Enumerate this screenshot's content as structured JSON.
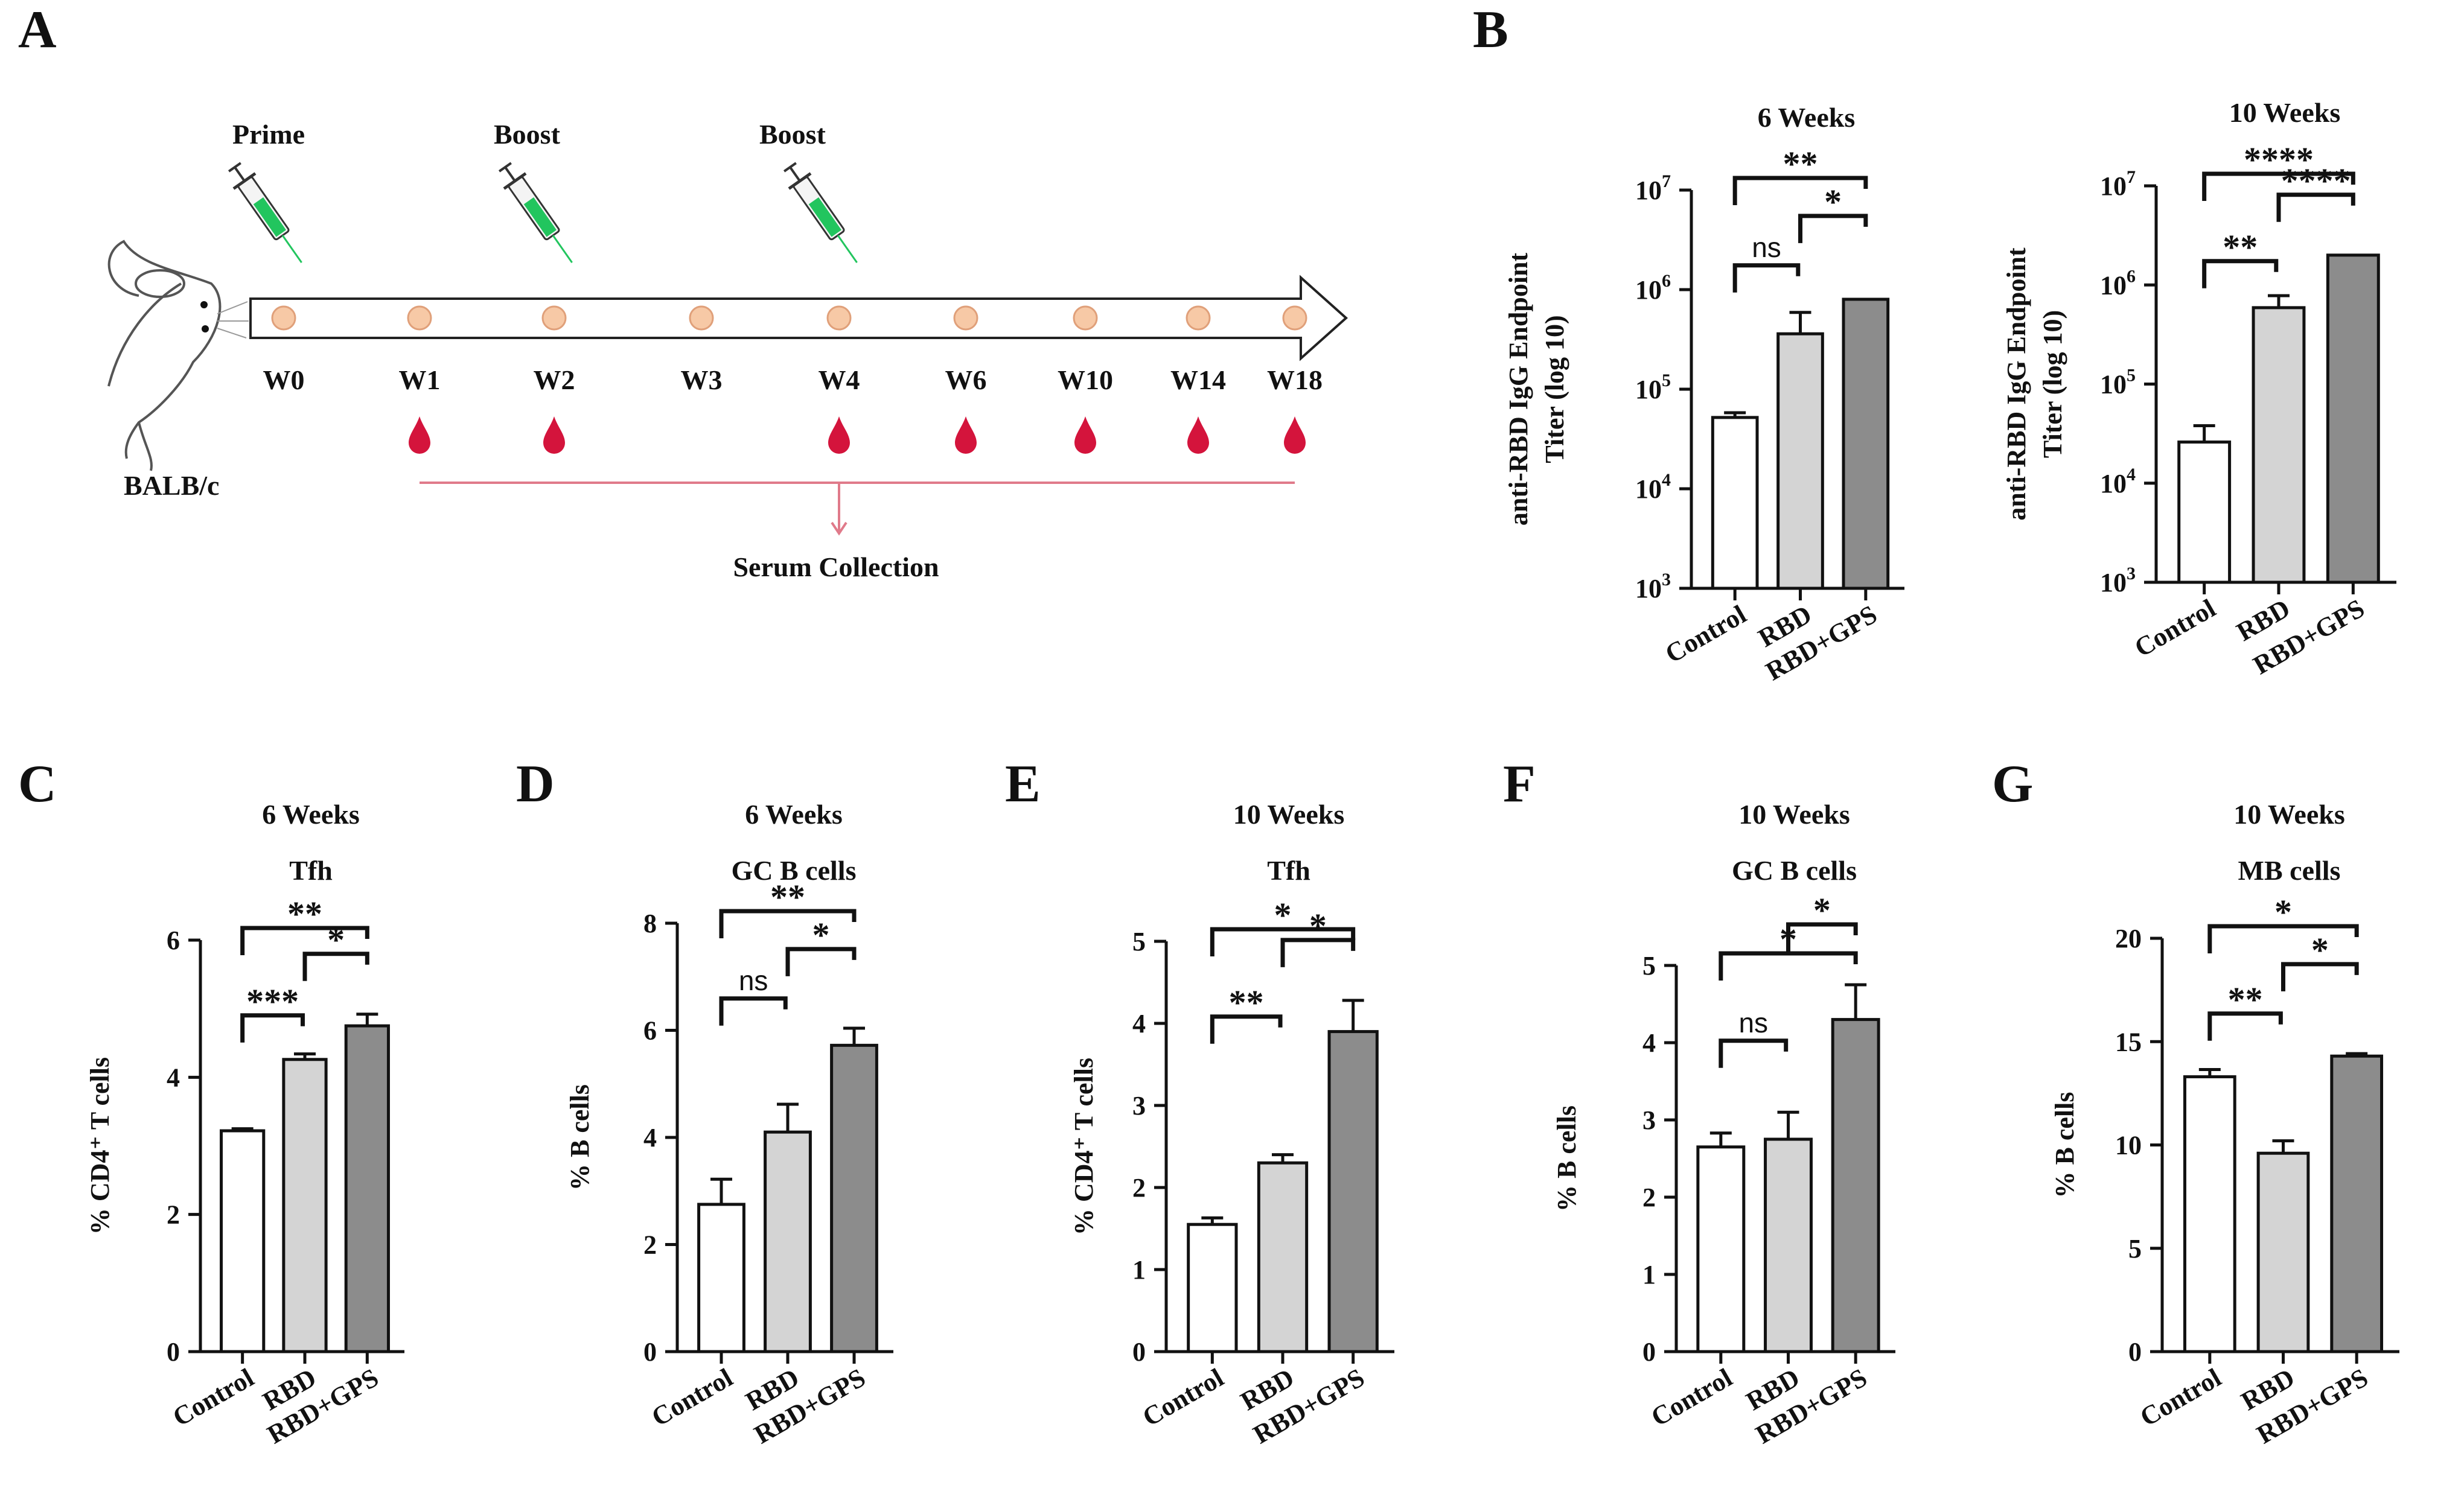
{
  "colors": {
    "ink": "#111111",
    "bar_control": "#ffffff",
    "bar_rbd": "#d4d4d4",
    "bar_rbd_gps": "#8c8c8c",
    "serum_line": "#e07a8a",
    "dot_fill": "#f7c9a6",
    "dot_stroke": "#e0a07a",
    "blood": "#d4143c",
    "syringe_liquid": "#22c55e"
  },
  "panels": {
    "A": "A",
    "B": "B",
    "C": "C",
    "D": "D",
    "E": "E",
    "F": "F",
    "G": "G"
  },
  "schematic": {
    "labels": {
      "prime": "Prime",
      "boost1": "Boost",
      "boost2": "Boost",
      "strain": "BALB/c",
      "serum": "Serum Collection"
    },
    "weeks": [
      "W0",
      "W1",
      "W2",
      "W3",
      "W4",
      "W6",
      "W10",
      "W14",
      "W18"
    ],
    "injection_weeks": [
      "W0",
      "W2",
      "W4"
    ],
    "bleed_weeks": [
      "W1",
      "W2",
      "W4",
      "W6",
      "W10",
      "W14",
      "W18"
    ],
    "icons": [
      "mouse-icon",
      "syringe-icon",
      "blood-drop-icon",
      "timeline-arrow-icon"
    ]
  },
  "chart_data": [
    {
      "panel": "B",
      "type": "bar",
      "scale": "log",
      "title": "6 Weeks",
      "subtitle": "",
      "ylabel_line1": "anti-RBD IgG Endpoint",
      "ylabel_line2": "Titer (log 10)",
      "categories": [
        "Control",
        "RBD",
        "RBD+GPS"
      ],
      "values": [
        52000,
        360000,
        800000
      ],
      "errors": [
        6000,
        230000,
        0
      ],
      "ylim": [
        1000,
        10000000
      ],
      "yticks": [
        1000,
        10000,
        100000,
        1000000,
        10000000
      ],
      "ytick_labels": [
        {
          "base": "10",
          "exp": "3"
        },
        {
          "base": "10",
          "exp": "4"
        },
        {
          "base": "10",
          "exp": "5"
        },
        {
          "base": "10",
          "exp": "6"
        },
        {
          "base": "10",
          "exp": "7"
        }
      ],
      "comparisons": [
        {
          "from": 0,
          "to": 1,
          "label": "ns",
          "level": 0
        },
        {
          "from": 1,
          "to": 2,
          "label": "*",
          "level": 1
        },
        {
          "from": 0,
          "to": 2,
          "label": "**",
          "level": 2
        }
      ]
    },
    {
      "panel": "B2",
      "type": "bar",
      "scale": "log",
      "title": "10 Weeks",
      "subtitle": "",
      "ylabel_line1": "anti-RBD IgG Endpoint",
      "ylabel_line2": "Titer (log 10)",
      "categories": [
        "Control",
        "RBD",
        "RBD+GPS"
      ],
      "values": [
        26000,
        590000,
        2000000
      ],
      "errors": [
        12000,
        190000,
        0
      ],
      "ylim": [
        1000,
        10000000
      ],
      "yticks": [
        1000,
        10000,
        100000,
        1000000,
        10000000
      ],
      "ytick_labels": [
        {
          "base": "10",
          "exp": "3"
        },
        {
          "base": "10",
          "exp": "4"
        },
        {
          "base": "10",
          "exp": "5"
        },
        {
          "base": "10",
          "exp": "6"
        },
        {
          "base": "10",
          "exp": "7"
        }
      ],
      "comparisons": [
        {
          "from": 0,
          "to": 1,
          "label": "**",
          "level": 0
        },
        {
          "from": 1,
          "to": 2,
          "label": "****",
          "level": 1
        },
        {
          "from": 0,
          "to": 2,
          "label": "****",
          "level": 2
        }
      ]
    },
    {
      "panel": "C",
      "type": "bar",
      "scale": "linear",
      "title": "6 Weeks",
      "subtitle": "Tfh",
      "ylabel": "% CD4⁺ T cells",
      "categories": [
        "Control",
        "RBD",
        "RBD+GPS"
      ],
      "values": [
        3.22,
        4.26,
        4.75
      ],
      "errors": [
        0.03,
        0.08,
        0.17
      ],
      "ylim": [
        0,
        6
      ],
      "yticks": [
        0,
        2,
        4,
        6
      ],
      "comparisons": [
        {
          "from": 0,
          "to": 1,
          "label": "***",
          "level": 0
        },
        {
          "from": 1,
          "to": 2,
          "label": "*",
          "level": 1
        },
        {
          "from": 0,
          "to": 2,
          "label": "**",
          "level": 2
        }
      ]
    },
    {
      "panel": "D",
      "type": "bar",
      "scale": "linear",
      "title": "6 Weeks",
      "subtitle": "GC B cells",
      "ylabel": "% B cells",
      "categories": [
        "Control",
        "RBD",
        "RBD+GPS"
      ],
      "values": [
        2.75,
        4.1,
        5.72
      ],
      "errors": [
        0.47,
        0.52,
        0.32
      ],
      "ylim": [
        0,
        8
      ],
      "yticks": [
        0,
        2,
        4,
        6,
        8
      ],
      "comparisons": [
        {
          "from": 0,
          "to": 1,
          "label": "ns",
          "level": 0
        },
        {
          "from": 1,
          "to": 2,
          "label": "*",
          "level": 1
        },
        {
          "from": 0,
          "to": 2,
          "label": "**",
          "level": 2
        }
      ]
    },
    {
      "panel": "E",
      "type": "bar",
      "scale": "linear",
      "title": "10 Weeks",
      "subtitle": "Tfh",
      "ylabel": "% CD4⁺ T cells",
      "categories": [
        "Control",
        "RBD",
        "RBD+GPS"
      ],
      "values": [
        1.55,
        2.3,
        3.9
      ],
      "errors": [
        0.08,
        0.1,
        0.38
      ],
      "ylim": [
        0,
        5
      ],
      "yticks": [
        0,
        1,
        2,
        3,
        4,
        5
      ],
      "comparisons": [
        {
          "from": 0,
          "to": 1,
          "label": "**",
          "level": 0
        },
        {
          "from": 1,
          "to": 2,
          "label": "*",
          "level": 1
        },
        {
          "from": 0,
          "to": 2,
          "label": "*",
          "level": 2
        }
      ]
    },
    {
      "panel": "F",
      "type": "bar",
      "scale": "linear",
      "title": "10 Weeks",
      "subtitle": "GC B cells",
      "ylabel": "% B cells",
      "categories": [
        "Control",
        "RBD",
        "RBD+GPS"
      ],
      "values": [
        2.65,
        2.75,
        4.3
      ],
      "errors": [
        0.18,
        0.35,
        0.45
      ],
      "ylim": [
        0,
        5
      ],
      "yticks": [
        0,
        1,
        2,
        3,
        4,
        5
      ],
      "comparisons": [
        {
          "from": 0,
          "to": 1,
          "label": "ns",
          "level": 0
        },
        {
          "from": 1,
          "to": 2,
          "label": "*",
          "level": 1
        },
        {
          "from": 0,
          "to": 2,
          "label": "*",
          "level": 2
        }
      ]
    },
    {
      "panel": "G",
      "type": "bar",
      "scale": "linear",
      "title": "10 Weeks",
      "subtitle": "MB cells",
      "ylabel": "% B cells",
      "categories": [
        "Control",
        "RBD",
        "RBD+GPS"
      ],
      "values": [
        13.3,
        9.6,
        14.3
      ],
      "errors": [
        0.35,
        0.6,
        0.12
      ],
      "ylim": [
        0,
        20
      ],
      "yticks": [
        0,
        5,
        10,
        15,
        20
      ],
      "comparisons": [
        {
          "from": 0,
          "to": 1,
          "label": "**",
          "level": 0
        },
        {
          "from": 1,
          "to": 2,
          "label": "*",
          "level": 1
        },
        {
          "from": 0,
          "to": 2,
          "label": "*",
          "level": 2
        }
      ]
    }
  ]
}
